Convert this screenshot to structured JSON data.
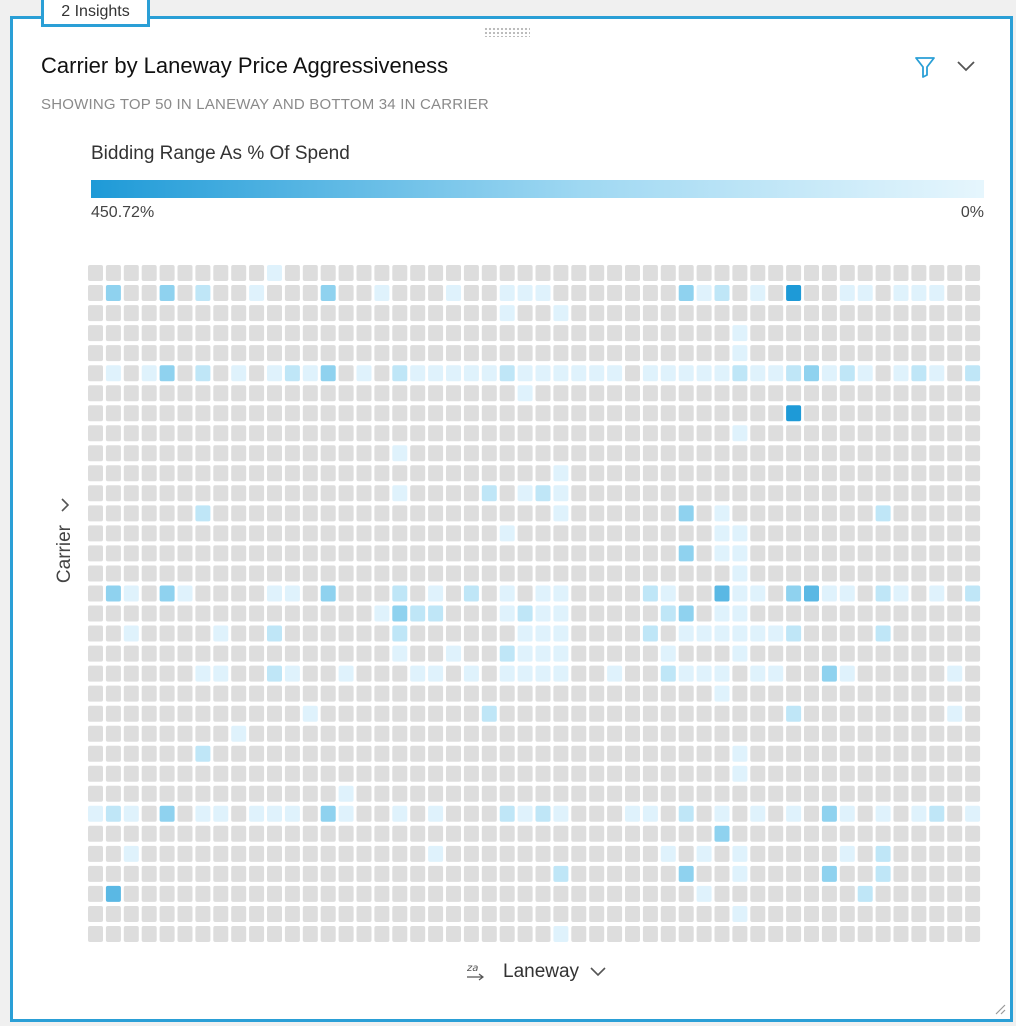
{
  "insights_tab": {
    "label": "2 Insights"
  },
  "card": {
    "title": "Carrier by Laneway Price Aggressiveness",
    "subtitle": "SHOWING TOP 50 IN LANEWAY AND BOTTOM 34 IN CARRIER"
  },
  "legend": {
    "title": "Bidding Range As % Of Spend",
    "max_label": "450.72%",
    "min_label": "0%",
    "color_max": "#1e9ad7",
    "color_min": "#e6f6fd",
    "empty_color": "#dddddd"
  },
  "axes": {
    "y_label": "Carrier",
    "x_label": "Laneway"
  },
  "icons": {
    "filter": "filter-icon",
    "menu": "chevron-down-icon",
    "sort": "sort-za-icon",
    "resize": "resize-handle-icon"
  },
  "chart_data": {
    "type": "heatmap",
    "columns": 50,
    "rows": 34,
    "scale": [
      0,
      450.72
    ],
    "cells": [
      [
        0,
        10,
        1
      ],
      [
        1,
        1,
        3
      ],
      [
        1,
        4,
        3
      ],
      [
        1,
        6,
        2
      ],
      [
        1,
        9,
        1
      ],
      [
        1,
        13,
        3
      ],
      [
        1,
        16,
        1
      ],
      [
        1,
        20,
        1
      ],
      [
        1,
        23,
        1
      ],
      [
        1,
        24,
        1
      ],
      [
        1,
        25,
        1
      ],
      [
        1,
        33,
        3
      ],
      [
        1,
        34,
        1
      ],
      [
        1,
        35,
        2
      ],
      [
        1,
        37,
        1
      ],
      [
        1,
        39,
        5
      ],
      [
        1,
        42,
        1
      ],
      [
        1,
        43,
        1
      ],
      [
        1,
        45,
        1
      ],
      [
        1,
        46,
        1
      ],
      [
        1,
        47,
        1
      ],
      [
        2,
        23,
        1
      ],
      [
        2,
        26,
        1
      ],
      [
        3,
        36,
        1
      ],
      [
        4,
        36,
        1
      ],
      [
        5,
        1,
        1
      ],
      [
        5,
        3,
        1
      ],
      [
        5,
        4,
        3
      ],
      [
        5,
        6,
        2
      ],
      [
        5,
        8,
        1
      ],
      [
        5,
        10,
        1
      ],
      [
        5,
        11,
        2
      ],
      [
        5,
        12,
        1
      ],
      [
        5,
        13,
        3
      ],
      [
        5,
        15,
        1
      ],
      [
        5,
        17,
        2
      ],
      [
        5,
        18,
        1
      ],
      [
        5,
        19,
        1
      ],
      [
        5,
        20,
        1
      ],
      [
        5,
        21,
        1
      ],
      [
        5,
        22,
        1
      ],
      [
        5,
        23,
        2
      ],
      [
        5,
        24,
        1
      ],
      [
        5,
        25,
        1
      ],
      [
        5,
        26,
        1
      ],
      [
        5,
        27,
        1
      ],
      [
        5,
        28,
        1
      ],
      [
        5,
        29,
        1
      ],
      [
        5,
        31,
        1
      ],
      [
        5,
        32,
        1
      ],
      [
        5,
        33,
        1
      ],
      [
        5,
        34,
        1
      ],
      [
        5,
        35,
        1
      ],
      [
        5,
        36,
        2
      ],
      [
        5,
        37,
        1
      ],
      [
        5,
        38,
        1
      ],
      [
        5,
        39,
        2
      ],
      [
        5,
        40,
        3
      ],
      [
        5,
        41,
        1
      ],
      [
        5,
        42,
        2
      ],
      [
        5,
        43,
        1
      ],
      [
        5,
        45,
        1
      ],
      [
        5,
        46,
        2
      ],
      [
        5,
        47,
        1
      ],
      [
        5,
        49,
        2
      ],
      [
        6,
        24,
        1
      ],
      [
        7,
        39,
        5
      ],
      [
        8,
        36,
        1
      ],
      [
        9,
        17,
        1
      ],
      [
        10,
        26,
        1
      ],
      [
        11,
        17,
        1
      ],
      [
        11,
        22,
        2
      ],
      [
        11,
        24,
        1
      ],
      [
        11,
        25,
        2
      ],
      [
        11,
        26,
        1
      ],
      [
        12,
        6,
        2
      ],
      [
        12,
        26,
        1
      ],
      [
        12,
        33,
        3
      ],
      [
        12,
        35,
        1
      ],
      [
        12,
        44,
        2
      ],
      [
        13,
        23,
        1
      ],
      [
        13,
        35,
        1
      ],
      [
        13,
        36,
        1
      ],
      [
        14,
        33,
        3
      ],
      [
        14,
        35,
        1
      ],
      [
        14,
        36,
        1
      ],
      [
        15,
        36,
        1
      ],
      [
        16,
        1,
        3
      ],
      [
        16,
        2,
        1
      ],
      [
        16,
        4,
        3
      ],
      [
        16,
        5,
        1
      ],
      [
        16,
        10,
        1
      ],
      [
        16,
        11,
        1
      ],
      [
        16,
        13,
        3
      ],
      [
        16,
        17,
        2
      ],
      [
        16,
        19,
        1
      ],
      [
        16,
        21,
        2
      ],
      [
        16,
        23,
        1
      ],
      [
        16,
        25,
        1
      ],
      [
        16,
        26,
        1
      ],
      [
        16,
        31,
        2
      ],
      [
        16,
        32,
        1
      ],
      [
        16,
        35,
        4
      ],
      [
        16,
        36,
        1
      ],
      [
        16,
        37,
        1
      ],
      [
        16,
        39,
        3
      ],
      [
        16,
        40,
        4
      ],
      [
        16,
        41,
        1
      ],
      [
        16,
        42,
        1
      ],
      [
        16,
        44,
        2
      ],
      [
        16,
        45,
        1
      ],
      [
        16,
        47,
        1
      ],
      [
        16,
        49,
        2
      ],
      [
        17,
        16,
        1
      ],
      [
        17,
        17,
        3
      ],
      [
        17,
        18,
        2
      ],
      [
        17,
        19,
        2
      ],
      [
        17,
        23,
        1
      ],
      [
        17,
        24,
        2
      ],
      [
        17,
        25,
        1
      ],
      [
        17,
        26,
        1
      ],
      [
        17,
        32,
        2
      ],
      [
        17,
        33,
        3
      ],
      [
        17,
        35,
        1
      ],
      [
        17,
        36,
        1
      ],
      [
        18,
        2,
        1
      ],
      [
        18,
        7,
        1
      ],
      [
        18,
        10,
        2
      ],
      [
        18,
        17,
        2
      ],
      [
        18,
        24,
        1
      ],
      [
        18,
        25,
        1
      ],
      [
        18,
        26,
        1
      ],
      [
        18,
        31,
        2
      ],
      [
        18,
        33,
        1
      ],
      [
        18,
        34,
        1
      ],
      [
        18,
        35,
        1
      ],
      [
        18,
        36,
        1
      ],
      [
        18,
        37,
        1
      ],
      [
        18,
        38,
        1
      ],
      [
        18,
        39,
        2
      ],
      [
        18,
        44,
        2
      ],
      [
        19,
        17,
        1
      ],
      [
        19,
        20,
        1
      ],
      [
        19,
        23,
        2
      ],
      [
        19,
        24,
        1
      ],
      [
        19,
        25,
        1
      ],
      [
        19,
        26,
        1
      ],
      [
        19,
        32,
        1
      ],
      [
        19,
        36,
        1
      ],
      [
        20,
        6,
        1
      ],
      [
        20,
        7,
        1
      ],
      [
        20,
        10,
        2
      ],
      [
        20,
        11,
        1
      ],
      [
        20,
        14,
        1
      ],
      [
        20,
        18,
        1
      ],
      [
        20,
        19,
        1
      ],
      [
        20,
        21,
        1
      ],
      [
        20,
        23,
        1
      ],
      [
        20,
        24,
        1
      ],
      [
        20,
        25,
        1
      ],
      [
        20,
        26,
        1
      ],
      [
        20,
        29,
        1
      ],
      [
        20,
        32,
        2
      ],
      [
        20,
        33,
        1
      ],
      [
        20,
        34,
        1
      ],
      [
        20,
        35,
        1
      ],
      [
        20,
        37,
        1
      ],
      [
        20,
        38,
        1
      ],
      [
        20,
        41,
        3
      ],
      [
        20,
        42,
        1
      ],
      [
        20,
        48,
        1
      ],
      [
        21,
        35,
        1
      ],
      [
        22,
        12,
        1
      ],
      [
        22,
        22,
        2
      ],
      [
        22,
        39,
        2
      ],
      [
        22,
        48,
        1
      ],
      [
        23,
        8,
        1
      ],
      [
        24,
        6,
        2
      ],
      [
        24,
        36,
        1
      ],
      [
        25,
        36,
        1
      ],
      [
        26,
        14,
        1
      ],
      [
        27,
        0,
        1
      ],
      [
        27,
        1,
        2
      ],
      [
        27,
        2,
        1
      ],
      [
        27,
        4,
        3
      ],
      [
        27,
        6,
        1
      ],
      [
        27,
        7,
        1
      ],
      [
        27,
        9,
        1
      ],
      [
        27,
        10,
        1
      ],
      [
        27,
        11,
        1
      ],
      [
        27,
        13,
        3
      ],
      [
        27,
        14,
        1
      ],
      [
        27,
        17,
        1
      ],
      [
        27,
        19,
        1
      ],
      [
        27,
        23,
        2
      ],
      [
        27,
        24,
        1
      ],
      [
        27,
        25,
        2
      ],
      [
        27,
        26,
        1
      ],
      [
        27,
        30,
        1
      ],
      [
        27,
        31,
        1
      ],
      [
        27,
        33,
        2
      ],
      [
        27,
        35,
        1
      ],
      [
        27,
        37,
        1
      ],
      [
        27,
        39,
        1
      ],
      [
        27,
        41,
        3
      ],
      [
        27,
        42,
        1
      ],
      [
        27,
        44,
        1
      ],
      [
        27,
        46,
        1
      ],
      [
        27,
        47,
        2
      ],
      [
        27,
        49,
        1
      ],
      [
        28,
        35,
        3
      ],
      [
        29,
        2,
        1
      ],
      [
        29,
        19,
        1
      ],
      [
        29,
        32,
        1
      ],
      [
        29,
        34,
        1
      ],
      [
        29,
        36,
        1
      ],
      [
        29,
        42,
        1
      ],
      [
        29,
        44,
        2
      ],
      [
        30,
        26,
        2
      ],
      [
        30,
        33,
        3
      ],
      [
        30,
        36,
        1
      ],
      [
        30,
        41,
        3
      ],
      [
        30,
        44,
        2
      ],
      [
        31,
        1,
        4
      ],
      [
        31,
        34,
        1
      ],
      [
        31,
        43,
        2
      ],
      [
        32,
        36,
        1
      ],
      [
        33,
        26,
        1
      ]
    ]
  }
}
